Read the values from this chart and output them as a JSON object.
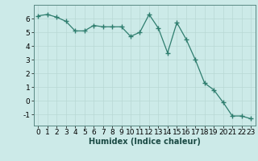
{
  "x": [
    0,
    1,
    2,
    3,
    4,
    5,
    6,
    7,
    8,
    9,
    10,
    11,
    12,
    13,
    14,
    15,
    16,
    17,
    18,
    19,
    20,
    21,
    22,
    23
  ],
  "y": [
    6.2,
    6.3,
    6.1,
    5.8,
    5.1,
    5.1,
    5.5,
    5.4,
    5.4,
    5.4,
    4.7,
    5.0,
    6.3,
    5.3,
    3.5,
    5.7,
    4.5,
    3.0,
    1.3,
    0.8,
    -0.1,
    -1.1,
    -1.1,
    -1.3
  ],
  "line_color": "#2e7d6e",
  "marker": "+",
  "marker_size": 4,
  "bg_color": "#cceae8",
  "grid_color_major": "#b8d8d4",
  "grid_color_minor": "#daeeed",
  "xlabel": "Humidex (Indice chaleur)",
  "xlim": [
    -0.5,
    23.5
  ],
  "ylim": [
    -1.8,
    7.0
  ],
  "yticks": [
    -1,
    0,
    1,
    2,
    3,
    4,
    5,
    6
  ],
  "xticks": [
    0,
    1,
    2,
    3,
    4,
    5,
    6,
    7,
    8,
    9,
    10,
    11,
    12,
    13,
    14,
    15,
    16,
    17,
    18,
    19,
    20,
    21,
    22,
    23
  ],
  "font_size_label": 7,
  "font_size_tick": 6.5,
  "line_width": 0.9
}
